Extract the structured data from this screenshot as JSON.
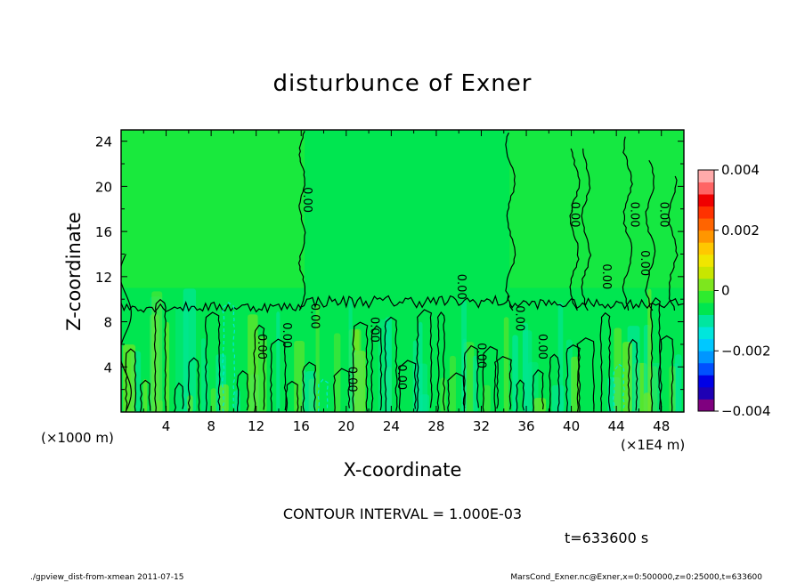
{
  "chart_data": {
    "type": "heatmap",
    "title": "disturbunce of Exner",
    "xlabel": "X-coordinate",
    "ylabel": "Z-coordinate",
    "x_unit_left": "(×1000 m)",
    "x_unit_right": "(×1E4 m)",
    "xlim": [
      0,
      50
    ],
    "ylim": [
      0,
      25
    ],
    "x_ticks": [
      "4",
      "8",
      "12",
      "16",
      "20",
      "24",
      "28",
      "32",
      "36",
      "40",
      "44",
      "48"
    ],
    "x_tick_values": [
      4,
      8,
      12,
      16,
      20,
      24,
      28,
      32,
      36,
      40,
      44,
      48
    ],
    "y_ticks": [
      "4",
      "8",
      "12",
      "16",
      "20",
      "24"
    ],
    "y_tick_values": [
      4,
      8,
      12,
      16,
      20,
      24
    ],
    "colorbar": {
      "range": [
        -0.004,
        0.004
      ],
      "tick_labels": [
        "−0.004",
        "−0.002",
        "0",
        "0.002",
        "0.004"
      ],
      "tick_values": [
        -0.004,
        -0.002,
        0,
        0.002,
        0.004
      ],
      "colors": [
        "#7f007f",
        "#1e00b4",
        "#0000e6",
        "#0050ff",
        "#0096ff",
        "#00c8ff",
        "#00e6dc",
        "#00e6a0",
        "#00e650",
        "#2eeb2e",
        "#7de61e",
        "#c8e600",
        "#f0e600",
        "#ffc800",
        "#ff9600",
        "#ff6400",
        "#ff3200",
        "#f00000",
        "#ff6464",
        "#ffaaaa"
      ]
    },
    "contour_interval_text": "CONTOUR INTERVAL = 1.000E-03",
    "time_text": "t=633600 s",
    "contour_labels": [
      {
        "text": "0.00",
        "x": 16.2,
        "z": 18.8
      },
      {
        "text": "0.00",
        "x": 12.2,
        "z": 5.8
      },
      {
        "text": "0.00",
        "x": 14.4,
        "z": 6.8
      },
      {
        "text": "0.00",
        "x": 16.9,
        "z": 8.5
      },
      {
        "text": "0.00",
        "x": 20.2,
        "z": 2.9
      },
      {
        "text": "0.00",
        "x": 22.2,
        "z": 7.3
      },
      {
        "text": "0.00",
        "x": 24.6,
        "z": 3.1
      },
      {
        "text": "0.00",
        "x": 29.9,
        "z": 11.1
      },
      {
        "text": "0.00",
        "x": 31.7,
        "z": 5.0
      },
      {
        "text": "0.00",
        "x": 35.1,
        "z": 8.3
      },
      {
        "text": "0.00",
        "x": 37.1,
        "z": 5.8
      },
      {
        "text": "0.00",
        "x": 40.0,
        "z": 17.5
      },
      {
        "text": "0.00",
        "x": 42.8,
        "z": 12.0
      },
      {
        "text": "0.00",
        "x": 45.3,
        "z": 17.5
      },
      {
        "text": "0.00",
        "x": 46.2,
        "z": 13.2
      },
      {
        "text": "0.00",
        "x": 47.9,
        "z": 17.5
      }
    ]
  },
  "footer": {
    "left": "./gpview_dist-from-xmean  2011-07-15",
    "right": "MarsCond_Exner.nc@Exner,x=0:500000,z=0:25000,t=633600"
  }
}
